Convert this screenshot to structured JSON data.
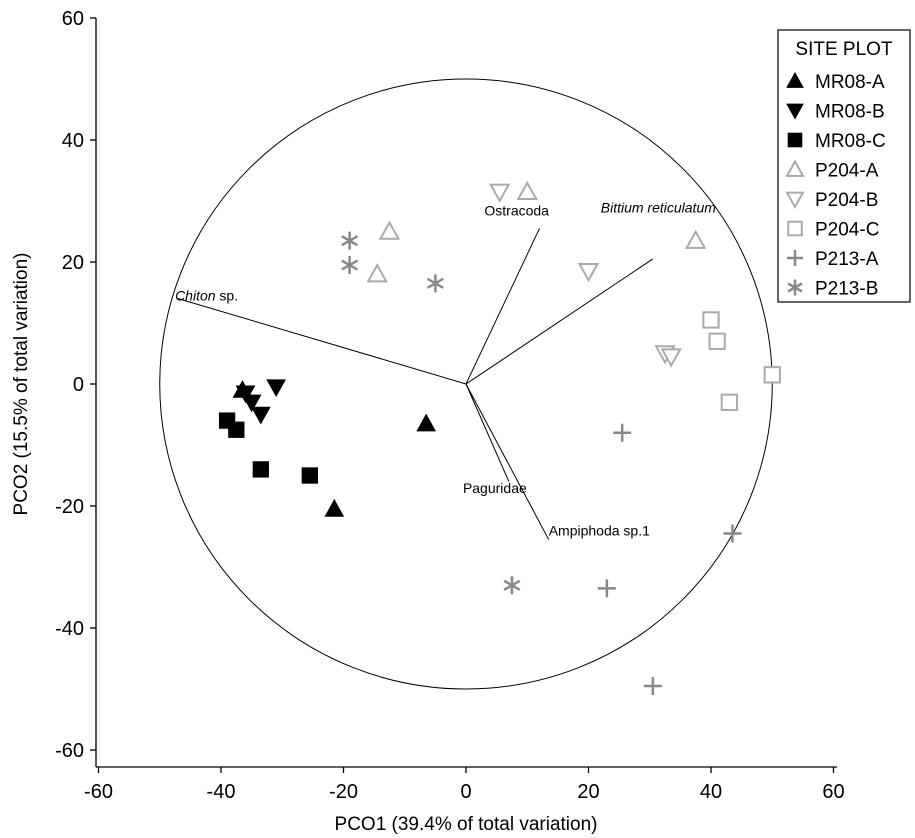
{
  "chart_data": {
    "type": "scatter",
    "xlabel": "PCO1 (39.4% of total variation)",
    "ylabel": "PCO2 (15.5% of total variation)",
    "xlim": [
      -60,
      60
    ],
    "ylim": [
      -60,
      60
    ],
    "xticks": [
      "-60",
      "-40",
      "-20",
      "0",
      "20",
      "40",
      "60"
    ],
    "yticks": [
      "60",
      "40",
      "20",
      "0",
      "-20",
      "-40",
      "-60"
    ],
    "circle_radius": 50,
    "legend_title": "SITE PLOT",
    "legend_position": "top-right",
    "series": [
      {
        "name": "MR08-A",
        "marker": "triangle-up",
        "filled": true,
        "color": "#000000",
        "points": [
          [
            -36.5,
            -1
          ],
          [
            -6.5,
            -6.5
          ],
          [
            -21.5,
            -20.5
          ]
        ]
      },
      {
        "name": "MR08-B",
        "marker": "triangle-down",
        "filled": true,
        "color": "#000000",
        "points": [
          [
            -31,
            -0.5
          ],
          [
            -35,
            -3
          ],
          [
            -36,
            -1.5
          ],
          [
            -33.5,
            -5
          ]
        ]
      },
      {
        "name": "MR08-C",
        "marker": "square",
        "filled": true,
        "color": "#000000",
        "points": [
          [
            -39,
            -6
          ],
          [
            -37.5,
            -7.5
          ],
          [
            -33.5,
            -14
          ],
          [
            -25.5,
            -15
          ]
        ]
      },
      {
        "name": "P204-A",
        "marker": "triangle-up",
        "filled": false,
        "color": "#aaaaaa",
        "points": [
          [
            -12.5,
            25
          ],
          [
            -14.5,
            18
          ],
          [
            10,
            31.5
          ],
          [
            37.5,
            23.5
          ]
        ]
      },
      {
        "name": "P204-B",
        "marker": "triangle-down",
        "filled": false,
        "color": "#aaaaaa",
        "points": [
          [
            5.5,
            31.5
          ],
          [
            20,
            18.5
          ],
          [
            32.5,
            5
          ],
          [
            33.5,
            4.5
          ]
        ]
      },
      {
        "name": "P204-C",
        "marker": "square",
        "filled": false,
        "color": "#aaaaaa",
        "points": [
          [
            40,
            10.5
          ],
          [
            41,
            7
          ],
          [
            50,
            1.5
          ],
          [
            43,
            -3
          ]
        ]
      },
      {
        "name": "P213-A",
        "marker": "plus",
        "filled": false,
        "color": "#888888",
        "points": [
          [
            25.5,
            -8
          ],
          [
            43.5,
            -24.5
          ],
          [
            23,
            -33.5
          ],
          [
            30.5,
            -49.5
          ]
        ]
      },
      {
        "name": "P213-B",
        "marker": "asterisk",
        "filled": false,
        "color": "#888888",
        "points": [
          [
            -19,
            23.5
          ],
          [
            -19,
            19.5
          ],
          [
            -5,
            16.5
          ],
          [
            7.5,
            -33
          ]
        ]
      }
    ],
    "vectors": [
      {
        "label": "Chiton",
        "label_suffix": " sp.",
        "italic": true,
        "end": [
          -47,
          14
        ],
        "label_pos": [
          -47.5,
          13
        ],
        "anchor": "start"
      },
      {
        "label": "Ostracoda",
        "label_suffix": "",
        "italic": false,
        "end": [
          12,
          25.5
        ],
        "label_pos": [
          3,
          27
        ],
        "anchor": "start"
      },
      {
        "label": "Bittium reticulatum",
        "label_suffix": "",
        "italic": true,
        "end": [
          30.5,
          20.5
        ],
        "label_pos": [
          22,
          27.5
        ],
        "anchor": "start"
      },
      {
        "label": "Paguridae",
        "label_suffix": "",
        "italic": false,
        "end": [
          7,
          -16
        ],
        "label_pos": [
          -0.5,
          -18.5
        ],
        "anchor": "start"
      },
      {
        "label": "Ampiphoda sp.1",
        "label_suffix": "",
        "italic": false,
        "end": [
          13.5,
          -25.5
        ],
        "label_pos": [
          13.5,
          -25.5
        ],
        "anchor": "start"
      }
    ]
  }
}
